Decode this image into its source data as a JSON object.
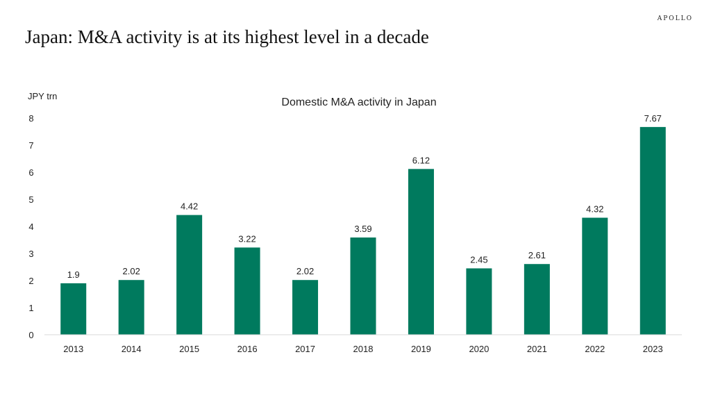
{
  "brand": "APOLLO",
  "headline": "Japan: M&A activity is at its highest level in a decade",
  "chart_data": {
    "type": "bar",
    "title": "Domestic M&A activity in Japan",
    "ylabel": "JPY trn",
    "xlabel": "",
    "categories": [
      "2013",
      "2014",
      "2015",
      "2016",
      "2017",
      "2018",
      "2019",
      "2020",
      "2021",
      "2022",
      "2023"
    ],
    "values": [
      1.9,
      2.02,
      4.42,
      3.22,
      2.02,
      3.59,
      6.12,
      2.45,
      2.61,
      4.32,
      7.67
    ],
    "value_labels": [
      "1.9",
      "2.02",
      "4.42",
      "3.22",
      "2.02",
      "3.59",
      "6.12",
      "2.45",
      "2.61",
      "4.32",
      "7.67"
    ],
    "ylim": [
      0,
      8
    ],
    "yticks": [
      0,
      1,
      2,
      3,
      4,
      5,
      6,
      7,
      8
    ],
    "grid": false,
    "legend": "none",
    "bar_color": "#007A5E"
  }
}
